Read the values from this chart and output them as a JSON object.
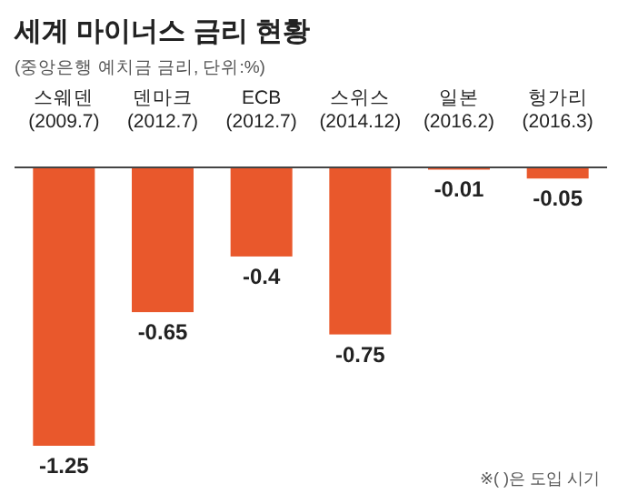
{
  "chart_data": {
    "type": "bar",
    "title": "세계 마이너스 금리 현황",
    "subtitle": "(중앙은행 예치금 금리, 단위:%)",
    "categories": [
      "스웨덴\n(2009.7)",
      "덴마크\n(2012.7)",
      "ECB\n(2012.7)",
      "스위스\n(2014.12)",
      "일본\n(2016.2)",
      "헝가리\n(2016.3)"
    ],
    "values": [
      -1.25,
      -0.65,
      -0.4,
      -0.75,
      -0.01,
      -0.05
    ],
    "color": "#e9582c",
    "data_labels": true,
    "annotations": [
      "※( )은 도입 시기"
    ]
  }
}
